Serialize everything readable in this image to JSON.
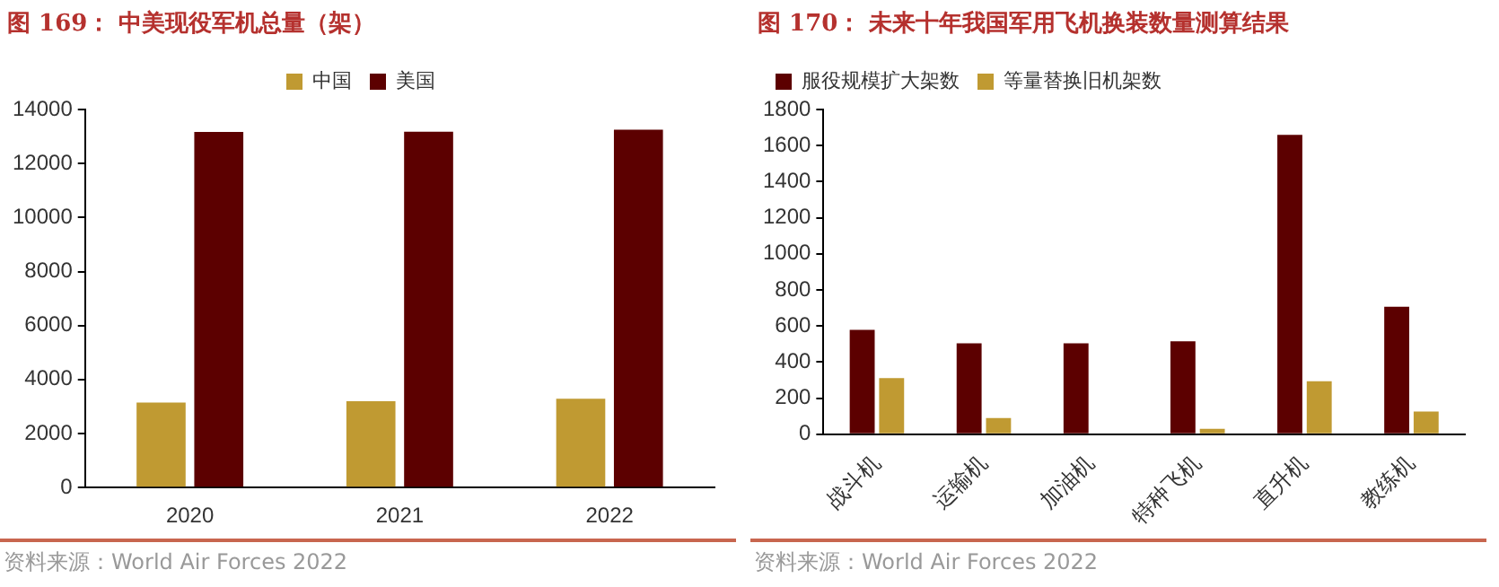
{
  "chart_data": [
    {
      "type": "bar",
      "title": "图 169：  中美现役军机总量（架）",
      "categories": [
        "2020",
        "2021",
        "2022"
      ],
      "series": [
        {
          "name": "中国",
          "color": "#c09a32",
          "values": [
            3150,
            3200,
            3285
          ]
        },
        {
          "name": "美国",
          "color": "#5c0000",
          "values": [
            13170,
            13180,
            13250
          ]
        }
      ],
      "ylim": [
        0,
        14000
      ],
      "yticks": [
        0,
        2000,
        4000,
        6000,
        8000,
        10000,
        12000,
        14000
      ],
      "grid": false,
      "legend": "top",
      "annotations": [
        "资料来源：World Air Forces 2022"
      ]
    },
    {
      "type": "bar",
      "title": "图 170：  未来十年我国军用飞机换装数量测算结果",
      "categories": [
        "战斗机",
        "运输机",
        "加油机",
        "特种飞机",
        "直升机",
        "教练机"
      ],
      "series": [
        {
          "name": "服役规模扩大架数",
          "color": "#5c0000",
          "values": [
            578,
            504,
            504,
            515,
            1659,
            707
          ]
        },
        {
          "name": "等量替换旧机架数",
          "color": "#c09a32",
          "values": [
            311,
            89,
            0,
            30,
            293,
            126
          ]
        }
      ],
      "ylim": [
        0,
        1800
      ],
      "yticks": [
        0,
        200,
        400,
        600,
        800,
        1000,
        1200,
        1400,
        1600,
        1800
      ],
      "grid": false,
      "legend": "top left",
      "annotations": [
        "资料来源：World Air Forces 2022"
      ]
    }
  ]
}
